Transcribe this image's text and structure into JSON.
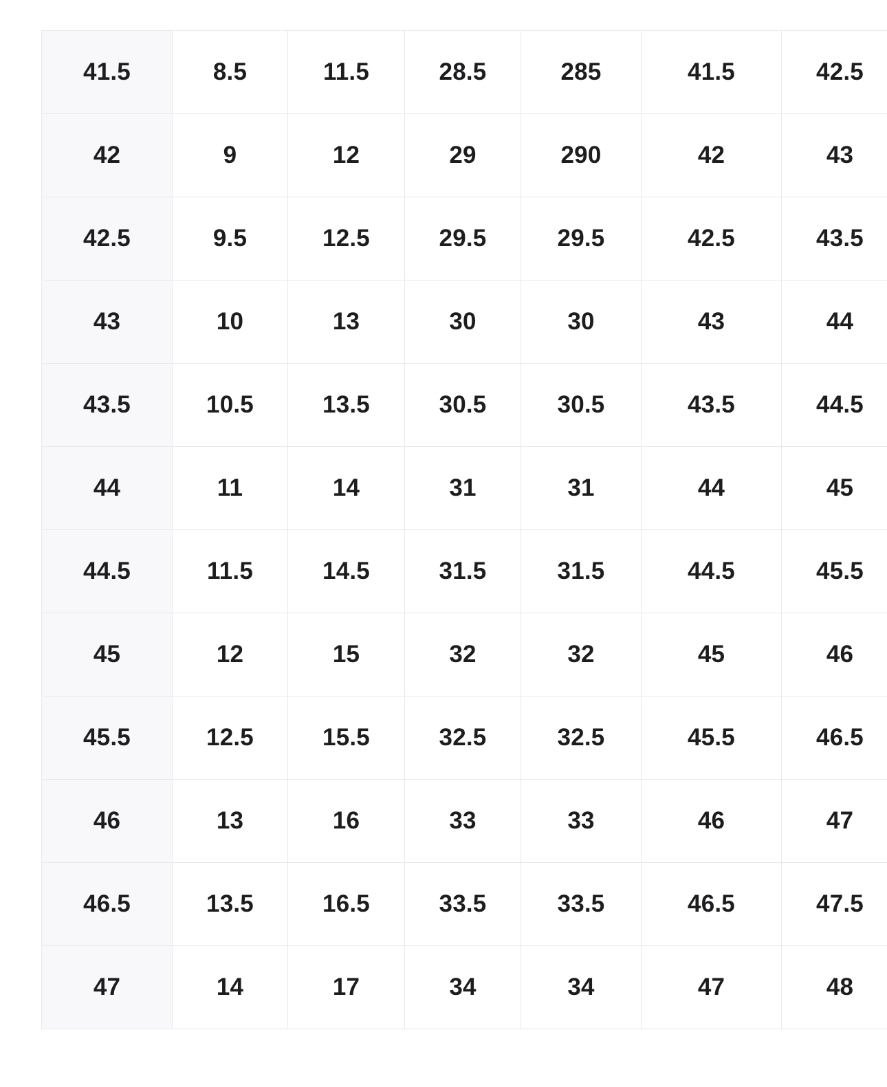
{
  "chart_data": {
    "type": "table",
    "title": "",
    "column_headers": [],
    "rows": [
      [
        "41.5",
        "8.5",
        "11.5",
        "28.5",
        "285",
        "41.5",
        "42.5"
      ],
      [
        "42",
        "9",
        "12",
        "29",
        "290",
        "42",
        "43"
      ],
      [
        "42.5",
        "9.5",
        "12.5",
        "29.5",
        "29.5",
        "42.5",
        "43.5"
      ],
      [
        "43",
        "10",
        "13",
        "30",
        "30",
        "43",
        "44"
      ],
      [
        "43.5",
        "10.5",
        "13.5",
        "30.5",
        "30.5",
        "43.5",
        "44.5"
      ],
      [
        "44",
        "11",
        "14",
        "31",
        "31",
        "44",
        "45"
      ],
      [
        "44.5",
        "11.5",
        "14.5",
        "31.5",
        "31.5",
        "44.5",
        "45.5"
      ],
      [
        "45",
        "12",
        "15",
        "32",
        "32",
        "45",
        "46"
      ],
      [
        "45.5",
        "12.5",
        "15.5",
        "32.5",
        "32.5",
        "45.5",
        "46.5"
      ],
      [
        "46",
        "13",
        "16",
        "33",
        "33",
        "46",
        "47"
      ],
      [
        "46.5",
        "13.5",
        "16.5",
        "33.5",
        "33.5",
        "46.5",
        "47.5"
      ],
      [
        "47",
        "14",
        "17",
        "34",
        "34",
        "47",
        "48"
      ]
    ],
    "layout": {
      "grid": "on",
      "first_column_is_row_header": true,
      "right_edge_clipped": true
    }
  },
  "styles": {
    "page_background": "#ffffff",
    "row_header_background": "#f8f8fa",
    "border_color": "#e8e8ed",
    "text_color": "#1d1d1f"
  }
}
